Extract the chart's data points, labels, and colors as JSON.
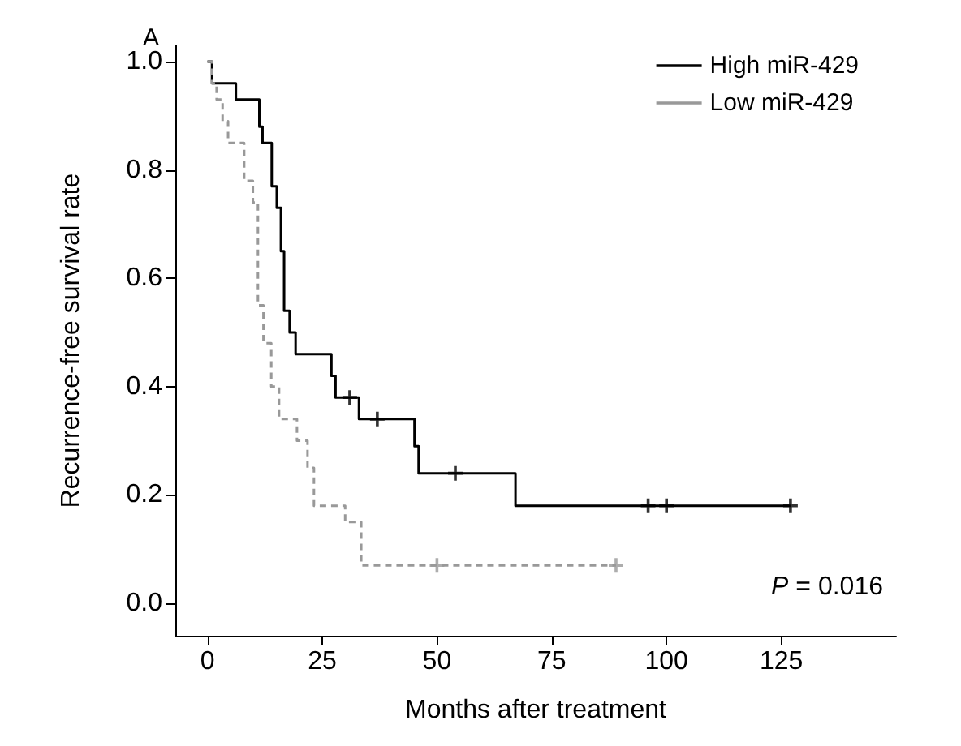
{
  "chart_data": {
    "type": "step",
    "xlabel": "Months after treatment",
    "ylabel": "Recurrence-free survival rate",
    "xlim": [
      -7,
      150
    ],
    "xticks": [
      0,
      25,
      50,
      75,
      100,
      125
    ],
    "ylim": [
      -0.06,
      1.03
    ],
    "yticks": [
      {
        "value": 0,
        "label": "0.0"
      },
      {
        "value": 0.2,
        "label": "0.2"
      },
      {
        "value": 0.4,
        "label": "0.4"
      },
      {
        "value": 0.6,
        "label": "0.6"
      },
      {
        "value": 0.8,
        "label": "0.8"
      },
      {
        "value": 1,
        "label": "1.0"
      }
    ],
    "grid": false,
    "legend": "top right",
    "marker": "none",
    "annotations": [
      "A",
      "P = 0.016"
    ],
    "series": [
      {
        "name": "High miR-429",
        "color": "#000000",
        "line_style": "solid",
        "x": [
          0,
          1,
          6.2,
          11.3,
          12,
          14,
          15.1,
          16,
          16.7,
          17.9,
          19.2,
          27,
          27.9,
          33,
          45.1,
          46,
          67.1,
          127
        ],
        "values": [
          1,
          0.96,
          0.93,
          0.88,
          0.85,
          0.77,
          0.73,
          0.65,
          0.54,
          0.5,
          0.46,
          0.42,
          0.38,
          0.34,
          0.29,
          0.24,
          0.18,
          0.18
        ]
      },
      {
        "name": "Low miR-429",
        "color": "#999999",
        "line_style": "dashed",
        "x": [
          0,
          1,
          2,
          3.3,
          4.5,
          8,
          9.9,
          11,
          12.2,
          13.9,
          15.6,
          19.5,
          21.8,
          23.2,
          30,
          33.5,
          89
        ],
        "values": [
          1,
          0.96,
          0.93,
          0.89,
          0.85,
          0.78,
          0.74,
          0.55,
          0.48,
          0.4,
          0.34,
          0.3,
          0.25,
          0.18,
          0.15,
          0.07,
          0.07
        ]
      },
      {
        "type": "scatter",
        "marker": "cross",
        "color": "#000000",
        "x": [
          31,
          37,
          54,
          96,
          100,
          127
        ],
        "values": [
          0.38,
          0.34,
          0.24,
          0.18,
          0.18,
          0.18
        ]
      },
      {
        "type": "scatter",
        "marker": "cross",
        "color": "#999999",
        "x": [
          50,
          89
        ],
        "values": [
          0.07,
          0.07
        ]
      }
    ]
  }
}
